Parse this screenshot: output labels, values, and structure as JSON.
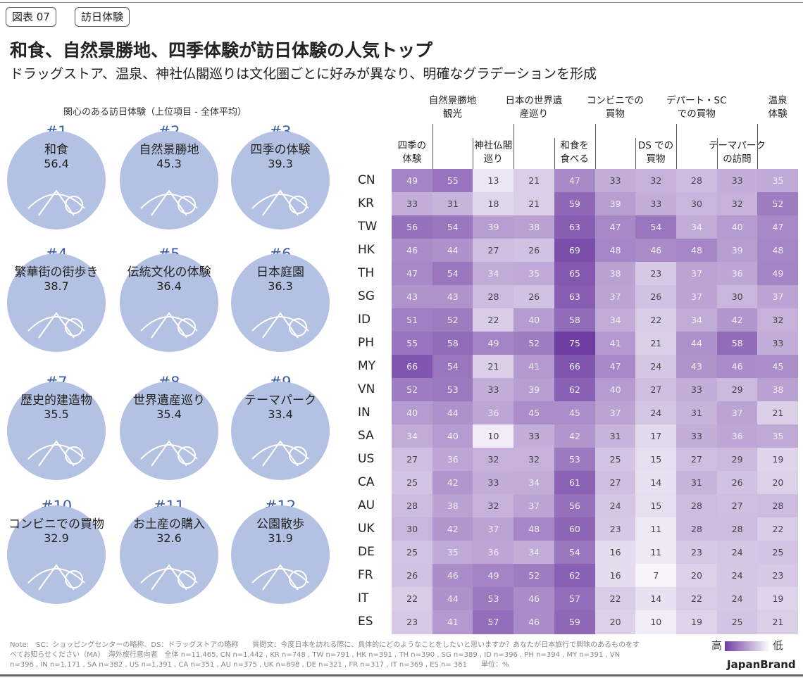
{
  "header": {
    "figure_tag": "図表 07",
    "category_tag": "訪日体験",
    "title": "和食、自然景勝地、四季体験が訪日体験の人気トップ",
    "subtitle": "ドラッグストア、温泉、神社仏閣巡りは文化圏ごとに好みが異なり、明確なグラデーションを形成"
  },
  "ranking": {
    "heading": "関心のある訪日体験（上位項目 - 全体平均）",
    "items": [
      {
        "rank": "#1",
        "name": "和食",
        "value": "56.4",
        "icon": "sushi-icon"
      },
      {
        "rank": "#2",
        "name": "自然景勝地",
        "value": "45.3",
        "icon": "mount-fuji-icon"
      },
      {
        "rank": "#3",
        "name": "四季の体験",
        "value": "39.3",
        "icon": "sakura-icon"
      },
      {
        "rank": "#4",
        "name": "繁華街の街歩き",
        "value": "38.7",
        "icon": "tokyo-tower-icon"
      },
      {
        "rank": "#5",
        "name": "伝統文化の体験",
        "value": "36.4",
        "icon": "tea-ceremony-icon"
      },
      {
        "rank": "#6",
        "name": "日本庭園",
        "value": "36.3",
        "icon": "bonsai-icon"
      },
      {
        "rank": "#7",
        "name": "歴史的建造物",
        "value": "35.5",
        "icon": "castle-icon"
      },
      {
        "rank": "#8",
        "name": "世界遺産巡り",
        "value": "35.4",
        "icon": "pagoda-icon"
      },
      {
        "rank": "#9",
        "name": "テーマパーク",
        "value": "33.4",
        "icon": "tent-icon"
      },
      {
        "rank": "#10",
        "name": "コンビニでの買物",
        "value": "32.9",
        "icon": "onigiri-icon"
      },
      {
        "rank": "#11",
        "name": "お土産の購入",
        "value": "32.6",
        "icon": "cart-icon"
      },
      {
        "rank": "#12",
        "name": "公園散歩",
        "value": "31.9",
        "icon": "trees-icon"
      }
    ]
  },
  "chart_data": {
    "type": "heatmap",
    "columns": [
      "四季の体験",
      "自然景勝地観光",
      "神社仏閣巡り",
      "日本の世界遺産巡り",
      "和食を食べる",
      "コンビニでの買物",
      "DSでの買物",
      "デパート・SCでの買物",
      "テーマパークの訪問",
      "温泉体験"
    ],
    "column_labels_display": [
      [
        "四季の",
        "体験"
      ],
      [
        "自然景勝地",
        "観光"
      ],
      [
        "神社仏閣",
        "巡り"
      ],
      [
        "日本の世界遺",
        "産巡り"
      ],
      [
        "和食を",
        "食べる"
      ],
      [
        "コンビニでの",
        "買物"
      ],
      [
        "DS での",
        "買物"
      ],
      [
        "デパート・SC",
        "での買物"
      ],
      [
        "テーマパーク",
        "の訪問"
      ],
      [
        "温泉",
        "体験"
      ]
    ],
    "rows": [
      "CN",
      "KR",
      "TW",
      "HK",
      "TH",
      "SG",
      "ID",
      "PH",
      "MY",
      "VN",
      "IN",
      "SA",
      "US",
      "CA",
      "AU",
      "UK",
      "DE",
      "FR",
      "IT",
      "ES"
    ],
    "values": [
      [
        49,
        55,
        13,
        21,
        47,
        33,
        32,
        28,
        33,
        35
      ],
      [
        33,
        31,
        18,
        21,
        59,
        39,
        33,
        30,
        32,
        52
      ],
      [
        56,
        54,
        39,
        38,
        63,
        47,
        54,
        34,
        40,
        47
      ],
      [
        46,
        44,
        27,
        26,
        69,
        48,
        46,
        48,
        39,
        48
      ],
      [
        47,
        54,
        34,
        35,
        65,
        38,
        23,
        37,
        36,
        49
      ],
      [
        43,
        43,
        28,
        26,
        63,
        37,
        26,
        37,
        30,
        37
      ],
      [
        51,
        52,
        22,
        40,
        58,
        34,
        22,
        34,
        42,
        32
      ],
      [
        55,
        58,
        49,
        52,
        75,
        41,
        21,
        44,
        58,
        33
      ],
      [
        66,
        54,
        21,
        41,
        66,
        47,
        24,
        43,
        46,
        45
      ],
      [
        52,
        53,
        33,
        39,
        62,
        40,
        27,
        33,
        29,
        38
      ],
      [
        40,
        44,
        36,
        45,
        45,
        37,
        24,
        31,
        37,
        21
      ],
      [
        34,
        40,
        10,
        33,
        42,
        31,
        17,
        33,
        36,
        35
      ],
      [
        27,
        36,
        32,
        32,
        53,
        25,
        15,
        27,
        29,
        19
      ],
      [
        25,
        42,
        33,
        34,
        61,
        27,
        14,
        31,
        26,
        20
      ],
      [
        28,
        38,
        32,
        37,
        56,
        24,
        15,
        28,
        27,
        28
      ],
      [
        30,
        42,
        37,
        48,
        60,
        23,
        11,
        28,
        28,
        22
      ],
      [
        25,
        35,
        36,
        34,
        54,
        16,
        11,
        23,
        24,
        25
      ],
      [
        26,
        46,
        49,
        52,
        62,
        16,
        7,
        20,
        24,
        23
      ],
      [
        22,
        44,
        53,
        46,
        57,
        22,
        14,
        22,
        24,
        19
      ],
      [
        23,
        41,
        57,
        46,
        59,
        20,
        10,
        19,
        25,
        21
      ]
    ],
    "unit": "%",
    "legend": {
      "high": "高",
      "low": "低",
      "high_color": "#6f3ea3",
      "low_color": "#ffffff"
    }
  },
  "footer": {
    "note": "Note:　SC：ショッピングセンターの略称、DS：ドラッグストアの略称　　質問文：今度日本を訪れる際に、具体的にどのようなことをしたいと思いますか？あなたが日本旅行で興味のあるものをすべてお知らせください（MA）　海外旅行意向者　全体 n=11,465, CN n=1,442 , KR n=748 , TW n=791 , HK n=391 , TH n=390 , SG n=389 , ID n=396 , PH n=394 , MY n=391 , VN n=396 , IN n=1,171 , SA n=382 , US n=1,391 , CA n=351 , AU n=375 , UK n=698 , DE n=321 , FR n=317 , IT n=369 , ES n= 361　　単位：%",
    "brand": "JapanBrand"
  }
}
